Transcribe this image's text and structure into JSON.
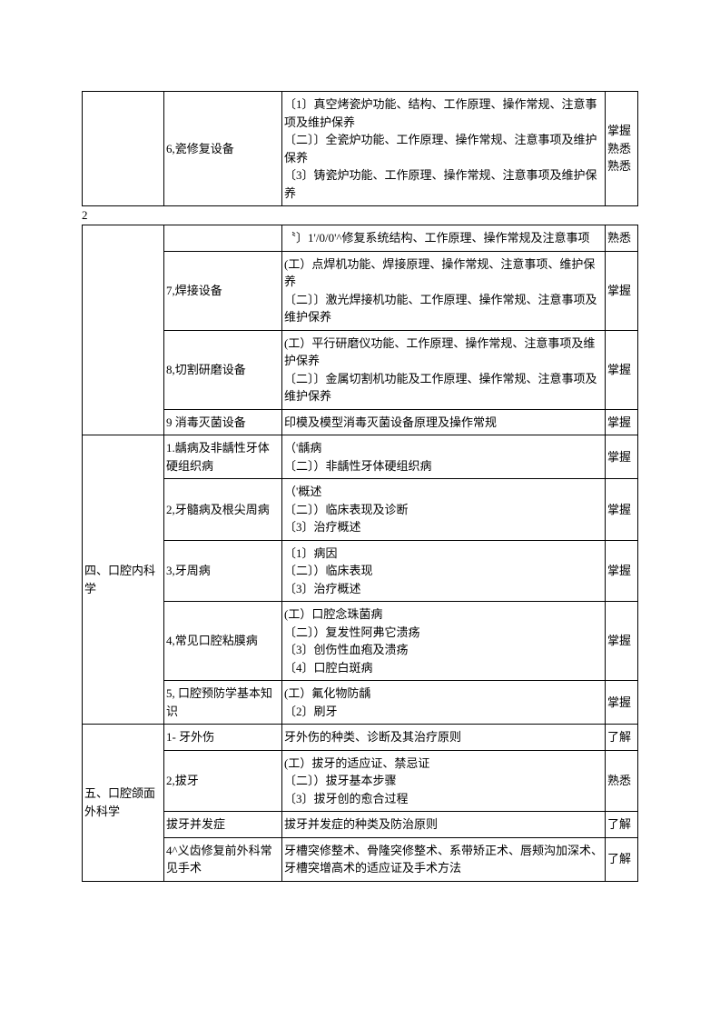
{
  "table1": {
    "rows": [
      {
        "c1": "",
        "c2": "6,瓷修复设备",
        "c3": "〔1〕真空烤瓷炉功能、结构、工作原理、操作常规、注意事项及维护保养\n〔二〕〕全瓷炉功能、工作原理、操作常规、注意事项及维护保养\n〔3〕铸瓷炉功能、工作原理、操作常规、注意事项及维护保养",
        "c4": "掌握\n熟悉\n熟悉"
      }
    ]
  },
  "pagenum": "2",
  "table2": {
    "rows": [
      {
        "c1": "",
        "c2": "",
        "c3": "〝〕1'/0/0'^修复系统结构、工作原理、操作常规及注意事项",
        "c4": "熟悉",
        "style": "no-top"
      },
      {
        "c1": "",
        "c2": "7,焊接设备",
        "c3": "(工）点焊机功能、焊接原理、操作常规、注意事项、维护保养\n〔二〕〕激光焊接机功能、工作原理、操作常规、注意事项及维护保养",
        "c4": "掌握"
      },
      {
        "c1": "",
        "c2": "8,切割研磨设备",
        "c3": "(工）平行研磨仪功能、工作原理、操作常规、注意事项及维护保养\n〔二〕〕金属切割机功能及工作原理、操作常规、注意事项及维护保养",
        "c4": "掌握"
      },
      {
        "c1": "",
        "c2": "9 消毒灭菌设备",
        "c3": "印模及模型消毒灭菌设备原理及操作常规",
        "c4": "掌握"
      },
      {
        "c1": "四、口腔内科学",
        "rowspan": 5,
        "c2": "1.龋病及非龋性牙体硬组织病",
        "c3": "（'龋病\n〔二〕）非龋性牙体硬组织病",
        "c4": "掌握"
      },
      {
        "c2": "2,牙髓病及根尖周病",
        "c3": "（'概述\n〔二〕）临床表现及诊断\n〔3〕治疗概述",
        "c4": "掌握"
      },
      {
        "c2": "3,牙周病",
        "c3": "〔1〕病因\n〔二〕）临床表现\n〔3〕治疗概述",
        "c4": "掌握"
      },
      {
        "c2": "4,常见口腔粘膜病",
        "c3": "(工）口腔念珠菌病\n〔二〕）复发性阿弗它溃疡\n〔3〕创伤性血疱及溃疡\n〔4〕口腔白斑病",
        "c4": "掌握"
      },
      {
        "c2": "5, 口腔预防学基本知识",
        "c3": "(工）氟化物防龋\n〔2〕刷牙",
        "c4": "掌握"
      },
      {
        "c1": "五、口腔颌面外科学",
        "rowspan": 4,
        "c2": "1- 牙外伤",
        "c3": "牙外伤的种类、诊断及其治疗原则",
        "c4": "了解"
      },
      {
        "c2": "2,拔牙",
        "c3": "(工）拔牙的适应证、禁忌证\n〔二〕）拔牙基本步骤\n〔3〕拔牙创的愈合过程",
        "c4": "熟悉"
      },
      {
        "c2": "拔牙并发症",
        "c3": "拔牙并发症的种类及防治原则",
        "c4": "了解"
      },
      {
        "c2": "4^义齿修复前外科常见手术",
        "c3": "牙槽突修整术、骨隆突修整术、系带矫正术、唇颊沟加深术、牙槽突增高术的适应证及手术方法",
        "c4": "了解"
      }
    ]
  }
}
